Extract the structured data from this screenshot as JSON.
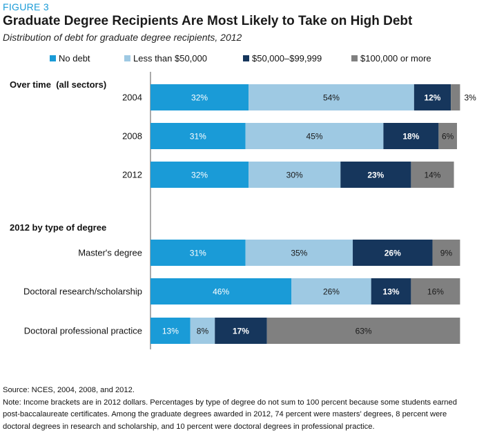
{
  "figure_label": "FIGURE 3",
  "title": "Graduate Degree Recipients Are Most Likely to Take on High Debt",
  "subtitle": "Distribution of debt for graduate degree recipients, 2012",
  "colors": {
    "no_debt": "#1a9bd7",
    "less_50k": "#9ec9e3",
    "50k_99k": "#16365c",
    "100k_plus": "#808080"
  },
  "source": "Source: NCES, 2004, 2008, and 2012.",
  "note": "Note: Income brackets are in 2012 dollars. Percentages by type of degree do not sum to 100 percent because some students earned post-baccalaureate certificates. Among the graduate degrees awarded in 2012, 74 percent were masters’ degrees, 8 percent were doctoral degrees in research and scholarship, and 10 percent were doctoral degrees in professional practice.",
  "chart_data": {
    "type": "bar",
    "orientation": "horizontal",
    "stacked": true,
    "xlim": [
      0,
      100
    ],
    "legend_position": "top",
    "grid": false,
    "series": [
      {
        "name": "No debt",
        "color": "#1a9bd7",
        "label_color": "#ffffff",
        "bold": false
      },
      {
        "name": "Less than $50,000",
        "color": "#9ec9e3",
        "label_color": "#1a1a1a",
        "bold": false
      },
      {
        "name": "$50,000–$99,999",
        "color": "#16365c",
        "label_color": "#ffffff",
        "bold": true
      },
      {
        "name": "$100,000 or more",
        "color": "#808080",
        "label_color": "#1a1a1a",
        "bold": false
      }
    ],
    "groups": [
      {
        "label": "Over time  (all sectors)",
        "rows": [
          {
            "category": "2004",
            "values": [
              32,
              54,
              12,
              3
            ]
          },
          {
            "category": "2008",
            "values": [
              31,
              45,
              18,
              6
            ]
          },
          {
            "category": "2012",
            "values": [
              32,
              30,
              23,
              14
            ]
          }
        ]
      },
      {
        "label": "2012 by type of degree",
        "rows": [
          {
            "category": "Master's degree",
            "values": [
              31,
              35,
              26,
              9
            ]
          },
          {
            "category": "Doctoral research/scholarship",
            "values": [
              46,
              26,
              13,
              16
            ]
          },
          {
            "category": "Doctoral professional practice",
            "values": [
              13,
              8,
              17,
              63
            ]
          }
        ]
      }
    ]
  }
}
